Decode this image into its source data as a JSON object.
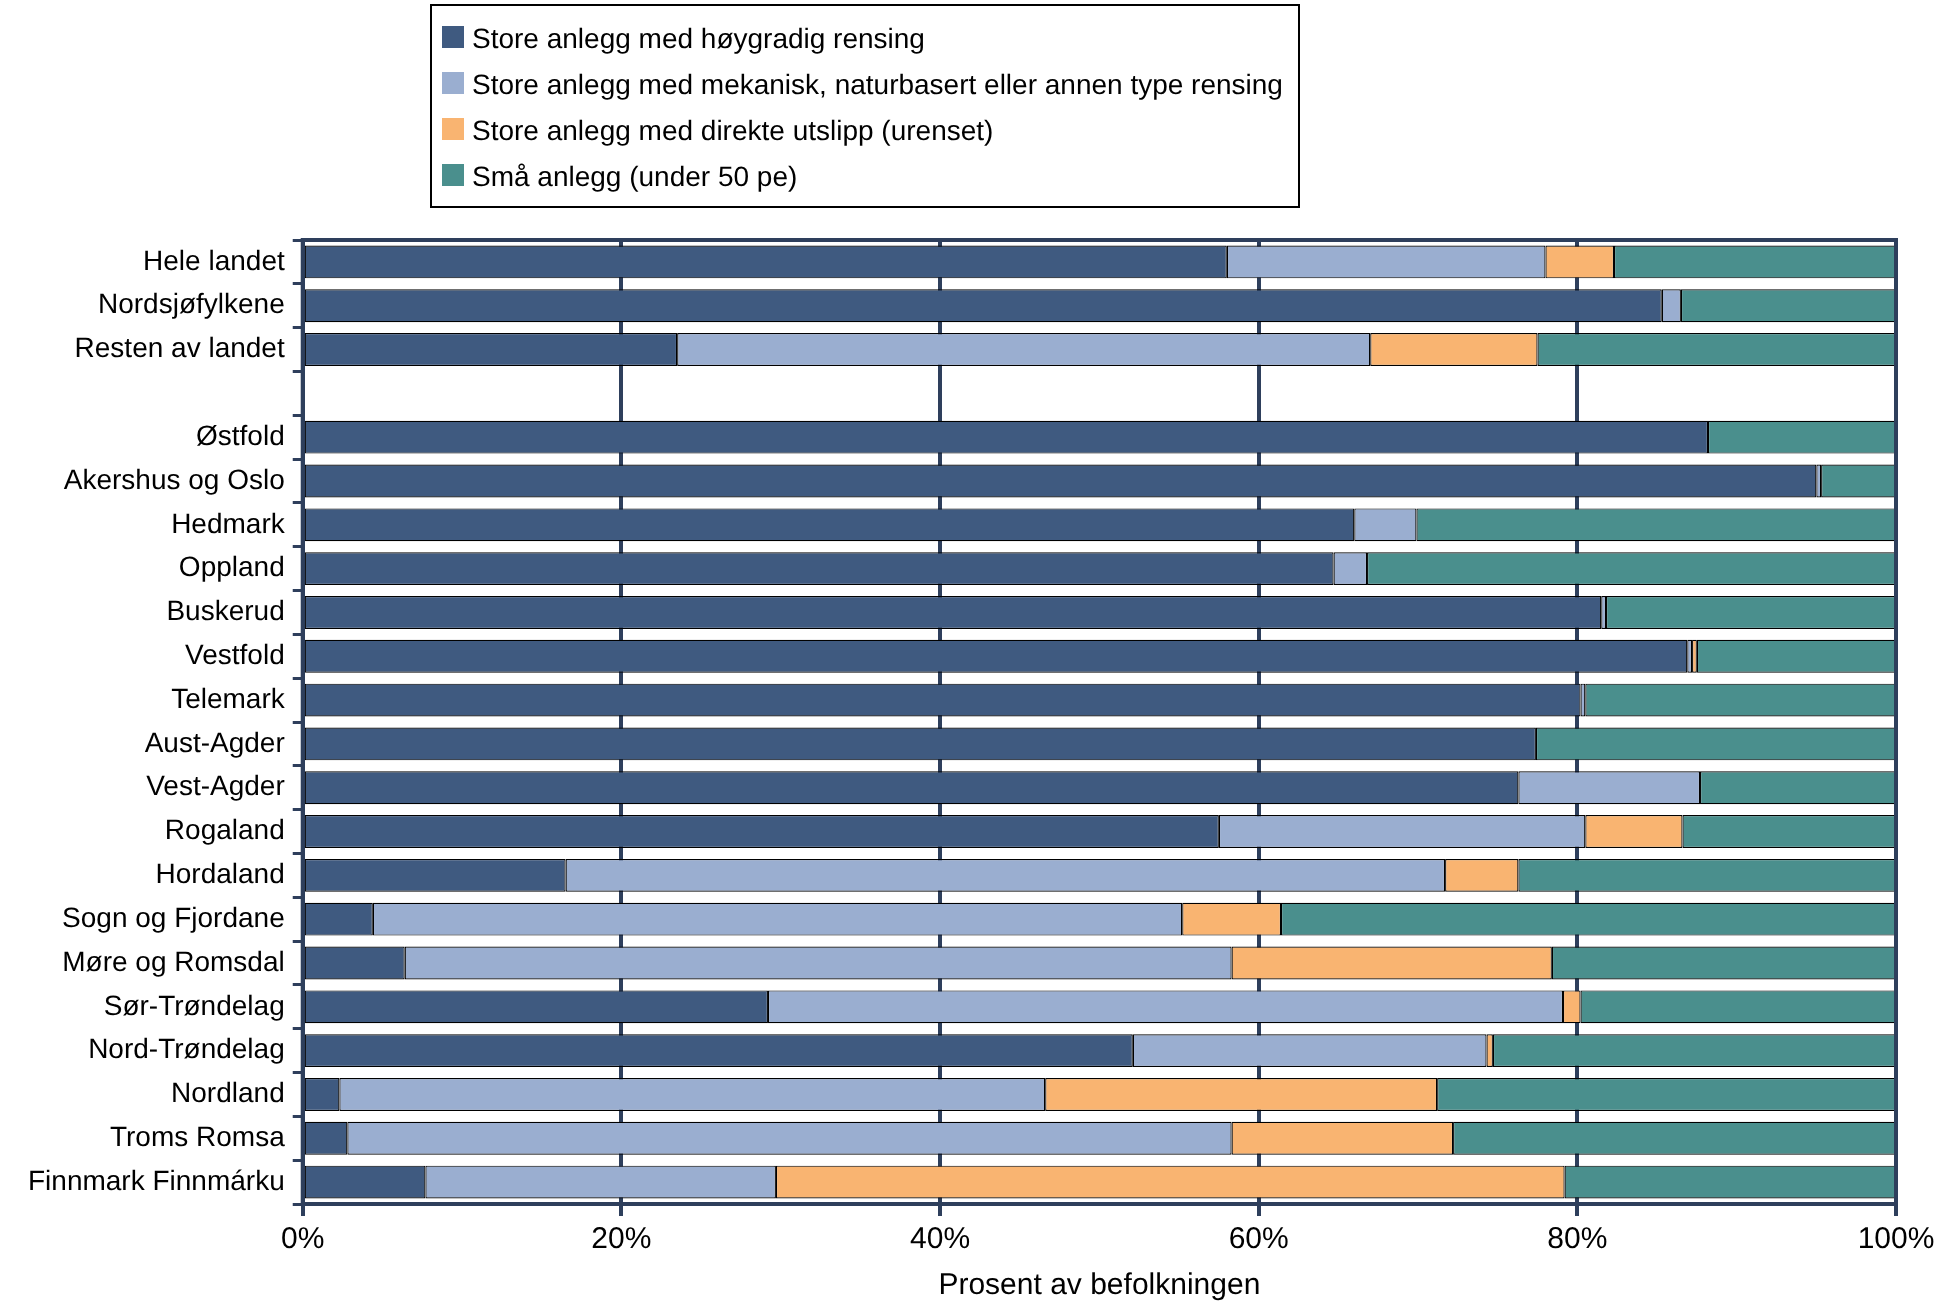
{
  "chart_data": {
    "type": "bar",
    "orientation": "horizontal",
    "stacked": true,
    "xlabel": "Prosent av befolkningen",
    "categories": [
      "Hele landet",
      "Nordsjøfylkene",
      "Resten av landet",
      null,
      "Østfold",
      "Akershus og Oslo",
      "Hedmark",
      "Oppland",
      "Buskerud",
      "Vestfold",
      "Telemark",
      "Aust-Agder",
      "Vest-Agder",
      "Rogaland",
      "Hordaland",
      "Sogn og Fjordane",
      "Møre og Romsdal",
      "Sør-Trøndelag",
      "Nord-Trøndelag",
      "Nordland",
      "Troms Romsa",
      "Finnmark Finnmárku"
    ],
    "series": [
      {
        "name": "Store anlegg med høygradig rensing",
        "color": "#3f5a80",
        "values": [
          58,
          85.3,
          23.5,
          null,
          88.2,
          95,
          66,
          64.7,
          81.5,
          86.9,
          80.2,
          77.4,
          76.3,
          57.5,
          16.5,
          4.4,
          6.4,
          29.2,
          52.1,
          2.3,
          2.8,
          7.7
        ]
      },
      {
        "name": "Store anlegg med mekanisk, naturbasert eller annen type rensing",
        "color": "#9aaed0",
        "values": [
          20,
          1.2,
          43.5,
          null,
          0,
          0.3,
          3.9,
          2.1,
          0.3,
          0.3,
          0.3,
          0,
          11.4,
          23,
          55.2,
          50.8,
          51.9,
          49.9,
          22.2,
          44.3,
          55.5,
          22
        ]
      },
      {
        "name": "Store anlegg med direkte utslipp (urenset)",
        "color": "#f9b471",
        "values": [
          4.3,
          0,
          10.5,
          null,
          0,
          0,
          0,
          0,
          0,
          0.3,
          0,
          0,
          0,
          6.1,
          4.6,
          6.2,
          20.1,
          1.1,
          0.4,
          24.6,
          13.9,
          49.5
        ]
      },
      {
        "name": "Små anlegg (under 50 pe)",
        "color": "#4a8f8d",
        "values": [
          17.7,
          13.5,
          22.5,
          null,
          11.8,
          4.8,
          30.1,
          33.2,
          18.2,
          12.5,
          19.5,
          22.6,
          12.3,
          13.4,
          23.7,
          38.6,
          21.6,
          19.8,
          25.3,
          28.8,
          27.8,
          20.8
        ]
      }
    ],
    "xlim": [
      0,
      100
    ],
    "xticks": [
      {
        "value": 0,
        "label": "0%"
      },
      {
        "value": 20,
        "label": "20%"
      },
      {
        "value": 40,
        "label": "40%"
      },
      {
        "value": 60,
        "label": "60%"
      },
      {
        "value": 80,
        "label": "80%"
      },
      {
        "value": 100,
        "label": "100%"
      }
    ],
    "grid": "x",
    "legend": "top"
  }
}
